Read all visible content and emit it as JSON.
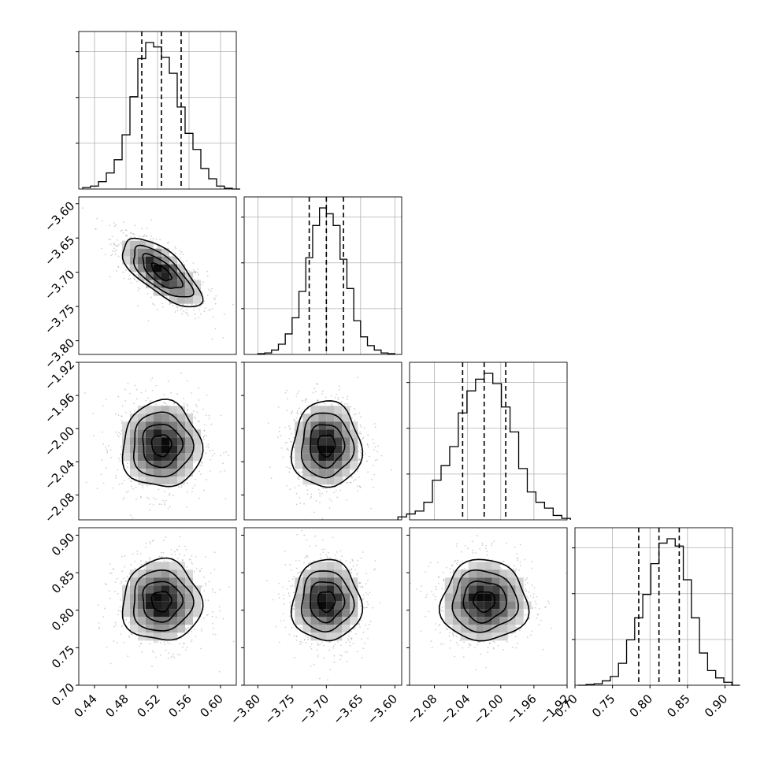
{
  "chart_data": {
    "type": "corner",
    "parameters": [
      {
        "mean": 0.525,
        "sigma": 0.025,
        "range": [
          0.42,
          0.62
        ],
        "ticks": [
          "0.44",
          "0.48",
          "0.52",
          "0.56",
          "0.60"
        ],
        "tick_values": [
          0.44,
          0.48,
          0.52,
          0.56,
          0.6
        ],
        "quantiles": [
          0.5,
          0.525,
          0.55
        ]
      },
      {
        "mean": -3.7,
        "sigma": 0.025,
        "range": [
          -3.82,
          -3.59
        ],
        "ticks": [
          "−3.80",
          "−3.75",
          "−3.70",
          "−3.65",
          "−3.60"
        ],
        "tick_values": [
          -3.8,
          -3.75,
          -3.7,
          -3.65,
          -3.6
        ],
        "quantiles": [
          -3.725,
          -3.7,
          -3.675
        ]
      },
      {
        "mean": -2.02,
        "sigma": 0.026,
        "range": [
          -2.11,
          -1.92
        ],
        "ticks": [
          "−2.08",
          "−2.04",
          "−2.00",
          "−1.96",
          "−1.92"
        ],
        "tick_values": [
          -2.08,
          -2.04,
          -2.0,
          -1.96,
          -1.92
        ],
        "quantiles": [
          -2.046,
          -2.02,
          -1.994
        ]
      },
      {
        "mean": 0.812,
        "sigma": 0.027,
        "range": [
          0.7,
          0.91
        ],
        "ticks": [
          "0.70",
          "0.75",
          "0.80",
          "0.85",
          "0.90"
        ],
        "tick_values": [
          0.7,
          0.75,
          0.8,
          0.85,
          0.9
        ],
        "quantiles": [
          0.785,
          0.812,
          0.839
        ]
      }
    ],
    "correlations": [
      [
        1,
        -0.7,
        0,
        0
      ],
      [
        -0.7,
        1,
        0,
        0
      ],
      [
        0,
        0,
        1,
        0
      ],
      [
        0,
        0,
        0,
        1
      ]
    ],
    "histograms": [
      [
        0.01,
        0.02,
        0.05,
        0.11,
        0.2,
        0.37,
        0.63,
        0.89,
        1.0,
        0.97,
        0.9,
        0.79,
        0.56,
        0.38,
        0.27,
        0.14,
        0.07,
        0.02,
        0.005,
        0.0
      ],
      [
        0.005,
        0.01,
        0.03,
        0.07,
        0.14,
        0.25,
        0.43,
        0.66,
        0.88,
        1.0,
        0.96,
        0.88,
        0.65,
        0.45,
        0.23,
        0.12,
        0.06,
        0.03,
        0.01,
        0.005
      ],
      [
        0.02,
        0.04,
        0.06,
        0.12,
        0.27,
        0.37,
        0.5,
        0.73,
        0.88,
        0.96,
        1.0,
        0.93,
        0.77,
        0.6,
        0.35,
        0.19,
        0.12,
        0.08,
        0.03,
        0.01
      ],
      [
        0.0,
        0.005,
        0.01,
        0.03,
        0.06,
        0.15,
        0.31,
        0.46,
        0.62,
        0.83,
        0.97,
        1.0,
        0.95,
        0.72,
        0.46,
        0.22,
        0.1,
        0.05,
        0.02,
        0.0
      ]
    ],
    "marginal_ticks": 3,
    "grid": true
  }
}
